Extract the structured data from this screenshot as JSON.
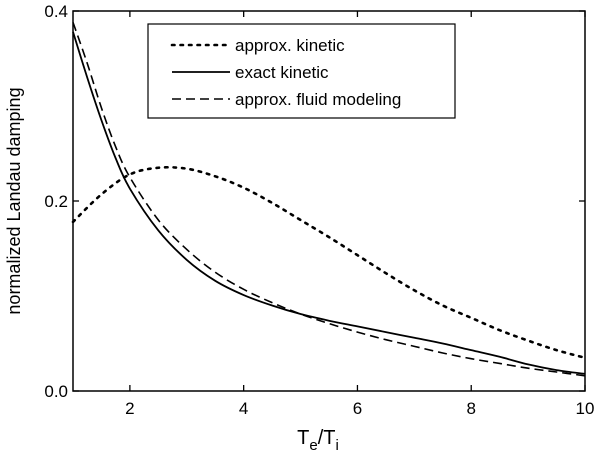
{
  "chart_data": {
    "type": "line",
    "title": "",
    "xlabel": {
      "main": "T",
      "sub1": "e",
      "slash": "/",
      "main2": "T",
      "sub2": "i"
    },
    "ylabel": "normalized Landau damping",
    "xlim": [
      1,
      10
    ],
    "ylim": [
      0,
      0.4
    ],
    "x_ticks": [
      2,
      4,
      6,
      8,
      10
    ],
    "x_tick_labels": [
      "2",
      "4",
      "6",
      "8",
      "10"
    ],
    "y_ticks": [
      0,
      0.2,
      0.4
    ],
    "y_tick_labels": [
      "0.0",
      "0.2",
      "0.4"
    ],
    "grid": false,
    "legend_position": "top-center",
    "series": [
      {
        "name": "approx. kinetic",
        "style": "dotted",
        "x": [
          1.0,
          1.5,
          2.0,
          2.5,
          3.0,
          3.5,
          4.0,
          4.5,
          5.0,
          5.5,
          6.0,
          6.5,
          7.0,
          7.5,
          8.0,
          8.5,
          9.0,
          9.5,
          10.0
        ],
        "y": [
          0.178,
          0.207,
          0.228,
          0.235,
          0.234,
          0.226,
          0.214,
          0.198,
          0.18,
          0.162,
          0.143,
          0.124,
          0.106,
          0.09,
          0.077,
          0.064,
          0.053,
          0.043,
          0.035
        ]
      },
      {
        "name": "exact kinetic",
        "style": "solid",
        "x": [
          1.0,
          1.25,
          1.5,
          1.75,
          2.0,
          2.5,
          3.0,
          3.5,
          4.0,
          4.5,
          5.0,
          5.5,
          6.0,
          6.5,
          7.0,
          7.5,
          8.0,
          8.5,
          9.0,
          9.5,
          10.0
        ],
        "y": [
          0.378,
          0.33,
          0.285,
          0.245,
          0.213,
          0.169,
          0.138,
          0.116,
          0.101,
          0.09,
          0.081,
          0.074,
          0.068,
          0.062,
          0.056,
          0.05,
          0.043,
          0.036,
          0.028,
          0.022,
          0.018
        ]
      },
      {
        "name": "approx. fluid modeling",
        "style": "dashed",
        "x": [
          1.0,
          1.25,
          1.5,
          1.75,
          2.0,
          2.5,
          3.0,
          3.5,
          4.0,
          4.5,
          5.0,
          5.5,
          6.0,
          6.5,
          7.0,
          7.5,
          8.0,
          8.5,
          9.0,
          9.5,
          10.0
        ],
        "y": [
          0.388,
          0.345,
          0.298,
          0.257,
          0.225,
          0.18,
          0.149,
          0.125,
          0.107,
          0.093,
          0.081,
          0.071,
          0.062,
          0.054,
          0.047,
          0.04,
          0.034,
          0.029,
          0.024,
          0.02,
          0.016
        ]
      }
    ]
  }
}
